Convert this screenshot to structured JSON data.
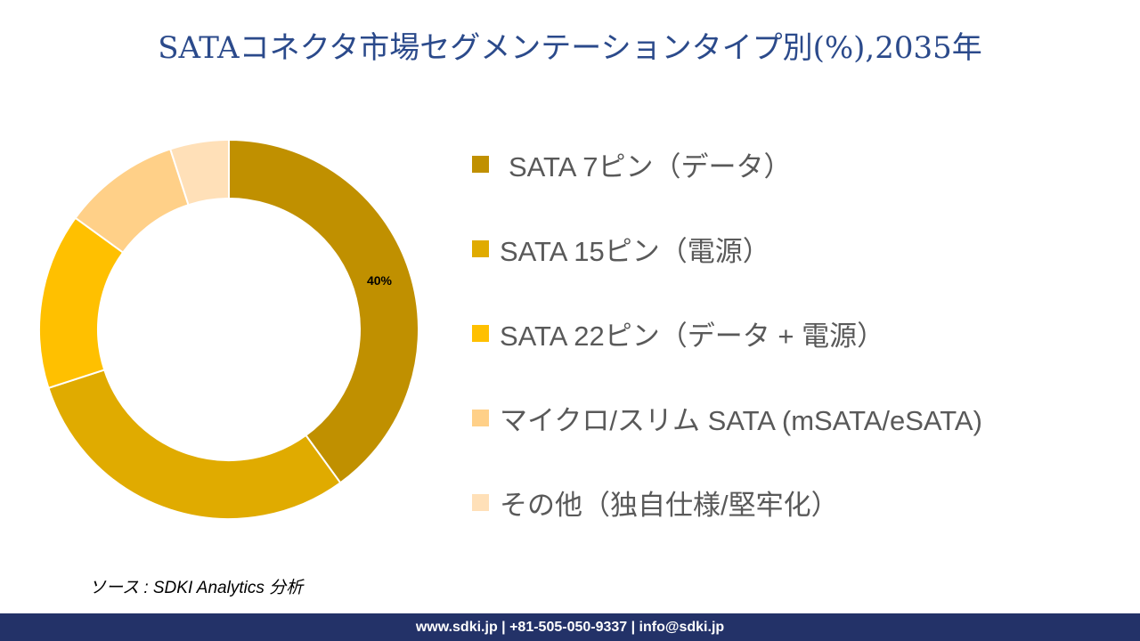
{
  "header": {
    "title": "SATAコネクタ市場セグメンテーションタイプ別(%),2035年"
  },
  "legend": {
    "items": [
      {
        "label": "SATA 7ピン（データ）",
        "color": "#C09000"
      },
      {
        "label": "SATA 15ピン（電源）",
        "color": "#E0AB00"
      },
      {
        "label": "SATA 22ピン（データ + 電源）",
        "color": "#FFC000"
      },
      {
        "label": "マイクロ/スリム SATA (mSATA/eSATA)",
        "color": "#FFD088"
      },
      {
        "label": "その他（独自仕様/堅牢化）",
        "color": "#FFE0B8"
      }
    ]
  },
  "source": "ソース : SDKI Analytics 分析",
  "footer": "www.sdki.jp | +81-505-050-9337 | info@sdki.jp",
  "chart_data": {
    "type": "pie",
    "subtype": "donut",
    "title": "SATAコネクタ市場セグメンテーションタイプ別(%),2035年",
    "categories": [
      "SATA 7ピン（データ）",
      "SATA 15ピン（電源）",
      "SATA 22ピン（データ + 電源）",
      "マイクロ/スリム SATA (mSATA/eSATA)",
      "その他（独自仕様/堅牢化）"
    ],
    "values": [
      40,
      30,
      15,
      10,
      5
    ],
    "colors": [
      "#C09000",
      "#E0AB00",
      "#FFC000",
      "#FFD088",
      "#FFE0B8"
    ],
    "data_labels": [
      "40%",
      "",
      "",
      "",
      ""
    ],
    "legend_position": "right"
  }
}
